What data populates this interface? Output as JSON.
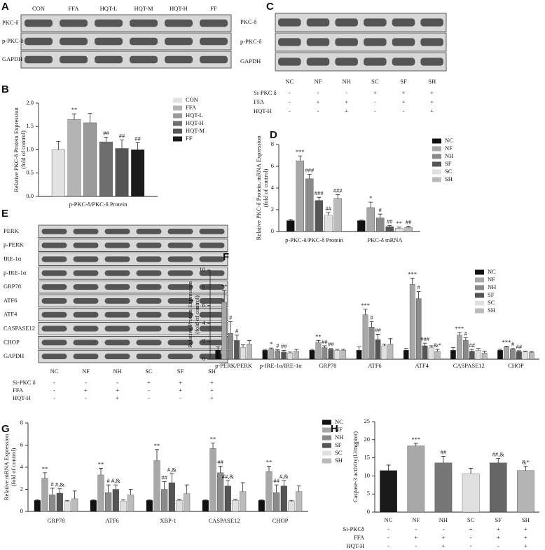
{
  "chart_data": [
    {
      "type": "bar",
      "panel": "B",
      "ylabel": [
        "Relative PKC-δ Protein Expression",
        "(fold of control)"
      ],
      "categories": [
        "p-PKC-δ/PKC-δ Protein"
      ],
      "series": [
        {
          "name": "CON",
          "color": "#e2e2e2",
          "values": [
            1.0
          ],
          "errors": [
            0.18
          ],
          "significance": [
            null
          ]
        },
        {
          "name": "FFA",
          "color": "#b4b4b4",
          "values": [
            1.65
          ],
          "errors": [
            0.12
          ],
          "significance": [
            "**"
          ]
        },
        {
          "name": "HQT-L",
          "color": "#9a9a9a",
          "values": [
            1.58
          ],
          "errors": [
            0.2
          ],
          "significance": [
            null
          ]
        },
        {
          "name": "HQT-H",
          "color": "#6e6e6e",
          "values": [
            1.17
          ],
          "errors": [
            0.1
          ],
          "significance": [
            "##"
          ]
        },
        {
          "name": "HQT-M",
          "color": "#555555",
          "values": [
            1.03
          ],
          "errors": [
            0.18
          ],
          "significance": [
            "##"
          ]
        },
        {
          "name": "FF",
          "color": "#1a1a1a",
          "values": [
            1.0
          ],
          "errors": [
            0.15
          ],
          "significance": [
            "##"
          ]
        }
      ],
      "ylim": [
        0,
        2
      ],
      "yticks": [
        {
          "value": 0,
          "label": "0.0"
        },
        {
          "value": 0.5,
          "label": "0.5"
        },
        {
          "value": 1,
          "label": "1.0"
        },
        {
          "value": 1.5,
          "label": "1.5"
        },
        {
          "value": 2,
          "label": "2.0"
        }
      ]
    },
    {
      "type": "bar",
      "panel": "D",
      "ylabel": [
        "Relative PKC-δ Protein, mRNA Expression",
        "(fold of control)"
      ],
      "categories": [
        "p-PKC-δ/PKC-δ Protein",
        "PKC-δ mRNA"
      ],
      "series": [
        {
          "name": "NC",
          "color": "#111111",
          "values": [
            1.0,
            1.0
          ],
          "errors": [
            0.1,
            0.05
          ],
          "significance": [
            null,
            null
          ]
        },
        {
          "name": "NF",
          "color": "#a8a8a8",
          "values": [
            6.5,
            2.2
          ],
          "errors": [
            0.45,
            0.5
          ],
          "significance": [
            "***",
            "*"
          ]
        },
        {
          "name": "NH",
          "color": "#8a8a8a",
          "values": [
            4.85,
            1.25
          ],
          "errors": [
            0.4,
            0.35
          ],
          "significance": [
            "###",
            "#"
          ]
        },
        {
          "name": "SF",
          "color": "#555555",
          "values": [
            2.85,
            0.45
          ],
          "errors": [
            0.3,
            0.1
          ],
          "significance": [
            "###",
            "##"
          ]
        },
        {
          "name": "SC",
          "color": "#e0e0e0",
          "values": [
            1.5,
            0.3
          ],
          "errors": [
            0.25,
            0.1
          ],
          "significance": [
            "##",
            "**"
          ]
        },
        {
          "name": "SH",
          "color": "#bbbbbb",
          "values": [
            3.05,
            0.38
          ],
          "errors": [
            0.35,
            0.1
          ],
          "significance": [
            "###",
            "##"
          ]
        }
      ],
      "ylim": [
        0,
        8
      ],
      "yticks": [
        0,
        2,
        4,
        6,
        8
      ]
    },
    {
      "type": "bar",
      "panel": "F",
      "ylabel": [
        "Relative Protein Expression",
        "(fold of control)"
      ],
      "categories": [
        "p-PERK/PERK",
        "p-IRE-1α/IRE-1α",
        "GRP78",
        "ATF6",
        "ATF4",
        "CASPASE12",
        "CHOP"
      ],
      "series": [
        {
          "name": "NC",
          "color": "#111111",
          "values": [
            1.0,
            1.0,
            1.0,
            1.0,
            1.0,
            1.0,
            1.0
          ],
          "errors": [
            0.4,
            0.1,
            0.1,
            0.4,
            0.2,
            0.3,
            0.1
          ],
          "significance": [
            null,
            null,
            null,
            null,
            null,
            null,
            null
          ]
        },
        {
          "name": "NF",
          "color": "#a8a8a8",
          "values": [
            6.4,
            1.15,
            1.9,
            5.0,
            8.4,
            2.7,
            1.35
          ],
          "errors": [
            1.3,
            0.1,
            0.2,
            0.6,
            0.7,
            0.3,
            0.1
          ],
          "significance": [
            "**",
            "*",
            "**",
            "***",
            "***",
            "***",
            "***"
          ]
        },
        {
          "name": "NH",
          "color": "#8a8a8a",
          "values": [
            2.9,
            0.95,
            1.3,
            3.6,
            6.8,
            2.1,
            1.1
          ],
          "errors": [
            1.3,
            0.1,
            0.2,
            0.6,
            0.8,
            0.3,
            0.1
          ],
          "significance": [
            "#",
            "#",
            "##",
            "#",
            "#",
            "#",
            "#"
          ]
        },
        {
          "name": "SF",
          "color": "#555555",
          "values": [
            2.1,
            0.8,
            1.1,
            2.2,
            1.5,
            0.9,
            0.85
          ],
          "errors": [
            0.6,
            0.2,
            0.1,
            0.6,
            0.3,
            0.2,
            0.1
          ],
          "significance": [
            "#",
            "##",
            "##",
            "##",
            "###",
            "##",
            "##"
          ]
        },
        {
          "name": "SC",
          "color": "#e0e0e0",
          "values": [
            1.3,
            0.7,
            1.0,
            1.5,
            1.3,
            1.0,
            0.8
          ],
          "errors": [
            0.3,
            0.1,
            0.1,
            0.2,
            0.2,
            0.2,
            0.1
          ],
          "significance": [
            null,
            null,
            null,
            null,
            null,
            null,
            null
          ]
        },
        {
          "name": "SH",
          "color": "#bbbbbb",
          "values": [
            1.7,
            0.9,
            1.0,
            1.7,
            0.9,
            0.7,
            0.75
          ],
          "errors": [
            0.4,
            0.2,
            0.1,
            0.6,
            0.2,
            0.2,
            0.1
          ],
          "significance": [
            null,
            null,
            null,
            null,
            "&*",
            null,
            null
          ]
        }
      ],
      "ylim": [
        0,
        10
      ],
      "yticks": [
        0,
        2,
        4,
        6,
        8,
        10
      ]
    },
    {
      "type": "bar",
      "panel": "G",
      "ylabel": [
        "Relative mRNA Expression",
        "(fold of control)"
      ],
      "categories": [
        "GRP78",
        "ATF6",
        "XBP-1",
        "CASPASE12",
        "CHOP"
      ],
      "series": [
        {
          "name": "NC",
          "color": "#111111",
          "values": [
            1.0,
            1.0,
            1.0,
            1.0,
            1.0
          ],
          "errors": [
            0.05,
            0.05,
            0.05,
            0.05,
            0.05
          ],
          "significance": [
            null,
            null,
            null,
            null,
            null
          ]
        },
        {
          "name": "NF",
          "color": "#a8a8a8",
          "values": [
            3.0,
            3.3,
            4.6,
            5.7,
            3.6
          ],
          "errors": [
            0.5,
            0.6,
            1.0,
            0.5,
            0.5
          ],
          "significance": [
            "**",
            "**",
            "**",
            "**",
            "**"
          ]
        },
        {
          "name": "NH",
          "color": "#8a8a8a",
          "values": [
            1.5,
            1.7,
            2.0,
            3.5,
            1.7
          ],
          "errors": [
            0.6,
            0.7,
            0.7,
            0.6,
            0.7
          ],
          "significance": [
            "#",
            "#",
            "##",
            "##",
            "##"
          ]
        },
        {
          "name": "SF",
          "color": "#555555",
          "values": [
            1.65,
            2.0,
            2.6,
            2.3,
            2.3
          ],
          "errors": [
            0.4,
            0.4,
            0.8,
            0.5,
            0.5
          ],
          "significance": [
            "#,&",
            "#,&",
            "#,&",
            "##,&",
            "#,&"
          ]
        },
        {
          "name": "SC",
          "color": "#e0e0e0",
          "values": [
            0.9,
            0.95,
            1.0,
            1.0,
            0.9
          ],
          "errors": [
            0.1,
            0.1,
            0.1,
            0.1,
            0.1
          ],
          "significance": [
            null,
            null,
            null,
            null,
            null
          ]
        },
        {
          "name": "SH",
          "color": "#bbbbbb",
          "values": [
            1.15,
            1.5,
            1.6,
            1.8,
            1.8
          ],
          "errors": [
            0.7,
            0.5,
            0.8,
            0.8,
            0.5
          ],
          "significance": [
            null,
            null,
            null,
            null,
            null
          ]
        }
      ],
      "ylim": [
        0,
        8
      ],
      "yticks": [
        0,
        2,
        4,
        6,
        8
      ]
    },
    {
      "type": "bar",
      "panel": "H",
      "ylabel": [
        "Caspase-3 activity(U/mgprot)"
      ],
      "categories": [
        "NC",
        "NF",
        "NH",
        "SC",
        "SF",
        "SH"
      ],
      "values": [
        11.5,
        18.3,
        13.6,
        10.6,
        13.6,
        11.5
      ],
      "errors": [
        1.5,
        0.7,
        1.8,
        1.5,
        1.2,
        1.2
      ],
      "significance": [
        null,
        "***",
        "##",
        null,
        "##,&",
        "&*"
      ],
      "colors": [
        "#1a1a1a",
        "#a8a8a8",
        "#777777",
        "#e0e0e0",
        "#666666",
        "#b4b4b4"
      ],
      "ylim": [
        0,
        25
      ],
      "yticks": [
        0,
        5,
        10,
        15,
        20,
        25
      ],
      "treatments": [
        {
          "label": "Si-PKCδ",
          "marks": [
            "-",
            "-",
            "-",
            "+",
            "+",
            "+"
          ]
        },
        {
          "label": "FFA",
          "marks": [
            "-",
            "+",
            "+",
            "-",
            "+",
            "+"
          ]
        },
        {
          "label": "HQT-H",
          "marks": [
            "-",
            "-",
            "+",
            "-",
            "-",
            "+"
          ]
        }
      ]
    }
  ],
  "blots": [
    {
      "panel": "A",
      "lanes": [
        "CON",
        "FFA",
        "HQT-L",
        "HQT-M",
        "HQT-H",
        "FF"
      ],
      "rows": [
        "PKC-δ",
        "p-PKC-δ",
        "GAPDH"
      ]
    },
    {
      "panel": "C",
      "lanes": [
        "NC",
        "NF",
        "NH",
        "SC",
        "SF",
        "SH"
      ],
      "rows": [
        "PKC-δ",
        "p-PKC-δ",
        "GAPDH"
      ],
      "treatments": [
        {
          "label": "Si-PKC δ",
          "marks": [
            "-",
            "-",
            "-",
            "+",
            "+",
            "+"
          ]
        },
        {
          "label": "FFA",
          "marks": [
            "-",
            "+",
            "+",
            "-",
            "+",
            "+"
          ]
        },
        {
          "label": "HQT-H",
          "marks": [
            "-",
            "-",
            "+",
            "-",
            "-",
            "+"
          ]
        }
      ]
    },
    {
      "panel": "E",
      "lanes": [
        "NC",
        "NF",
        "NH",
        "SC",
        "SF",
        "SH"
      ],
      "rows": [
        "PERK",
        "p-PERK",
        "IRE-1α",
        "p-IRE-1α",
        "GRP78",
        "ATF6",
        "ATF4",
        "CASPASE12",
        "CHOP",
        "GAPDH"
      ],
      "treatments": [
        {
          "label": "Si-PKC δ",
          "marks": [
            "-",
            "-",
            "-",
            "+",
            "+",
            "+"
          ]
        },
        {
          "label": "FFA",
          "marks": [
            "-",
            "+",
            "+",
            "-",
            "+",
            "+"
          ]
        },
        {
          "label": "HQT-H",
          "marks": [
            "-",
            "-",
            "+",
            "-",
            "-",
            "+"
          ]
        }
      ]
    }
  ]
}
